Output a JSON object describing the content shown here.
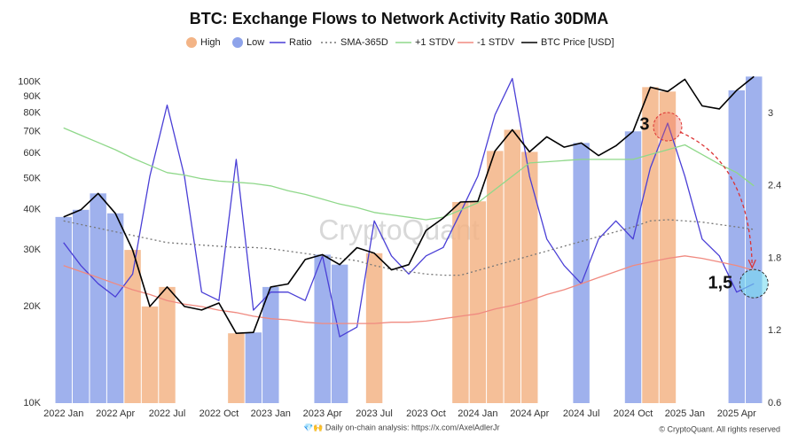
{
  "chart_data": {
    "type": "combo",
    "title": "BTC: Exchange Flows to Network Activity Ratio 30DMA",
    "watermark": "CryptoQuant",
    "footer_left": "💎🙌 Daily on-chain analysis: https://x.com/AxelAdlerJr",
    "footer_right": "© CryptoQuant. All rights reserved",
    "annotations": [
      "3",
      "1,5"
    ],
    "categories": [
      "2022 Jan",
      null,
      null,
      "2022 Apr",
      null,
      null,
      "2022 Jul",
      null,
      null,
      "2022 Oct",
      null,
      null,
      "2023 Jan",
      null,
      null,
      "2023 Apr",
      null,
      null,
      "2023 Jul",
      null,
      null,
      "2023 Oct",
      null,
      null,
      "2024 Jan",
      null,
      null,
      "2024 Apr",
      null,
      null,
      "2024 Jul",
      null,
      null,
      "2024 Oct",
      null,
      null,
      "2025 Jan",
      null,
      null,
      "2025 Apr",
      null
    ],
    "ylim": [
      10000,
      123000
    ],
    "ylog": true,
    "yticks": [
      {
        "value": 10000,
        "label": "10K"
      },
      {
        "value": 20000,
        "label": "20K"
      },
      {
        "value": 30000,
        "label": "30K"
      },
      {
        "value": 40000,
        "label": "40K"
      },
      {
        "value": 50000,
        "label": "50K"
      },
      {
        "value": 60000,
        "label": "60K"
      },
      {
        "value": 70000,
        "label": "70K"
      },
      {
        "value": 80000,
        "label": "80K"
      },
      {
        "value": 90000,
        "label": "90K"
      },
      {
        "value": 100000,
        "label": "100K"
      }
    ],
    "y2lim": [
      0.6,
      3.5
    ],
    "y2ticks": [
      0.6,
      1.2,
      1.8,
      2.4,
      3
    ],
    "grid": false,
    "series": [
      {
        "name": "High",
        "type": "bar",
        "color": "#f3b486",
        "values": [
          null,
          null,
          null,
          null,
          30000,
          20000,
          23000,
          null,
          null,
          null,
          16500,
          null,
          null,
          null,
          null,
          null,
          null,
          null,
          29300,
          null,
          null,
          null,
          null,
          42300,
          42500,
          61000,
          71000,
          60600,
          null,
          null,
          null,
          null,
          null,
          null,
          96400,
          93400,
          null,
          null,
          null,
          null,
          null
        ]
      },
      {
        "name": "Low",
        "type": "bar",
        "color": "#8ea3ea",
        "values": [
          38000,
          40000,
          45000,
          39000,
          null,
          null,
          null,
          null,
          null,
          null,
          null,
          16600,
          23000,
          null,
          null,
          29000,
          27000,
          null,
          null,
          null,
          null,
          null,
          null,
          null,
          null,
          null,
          null,
          null,
          null,
          null,
          64600,
          null,
          null,
          70200,
          null,
          null,
          null,
          null,
          null,
          94200,
          104000
        ]
      },
      {
        "name": "Ratio",
        "type": "line",
        "axis": "y2",
        "color": "#4a3fd6",
        "values": [
          1.93,
          1.74,
          1.59,
          1.48,
          1.67,
          2.48,
          3.07,
          2.48,
          1.52,
          1.45,
          2.62,
          1.37,
          1.52,
          1.52,
          1.45,
          1.82,
          1.15,
          1.23,
          2.11,
          1.82,
          1.67,
          1.82,
          1.89,
          2.18,
          2.48,
          2.99,
          3.29,
          2.48,
          1.96,
          1.74,
          1.59,
          1.96,
          2.11,
          1.96,
          2.55,
          2.92,
          2.48,
          1.96,
          1.82,
          1.52,
          1.59
        ]
      },
      {
        "name": "SMA-365D",
        "type": "line",
        "axis": "y2",
        "color": "#777777",
        "dash": true,
        "values": [
          2.11,
          2.08,
          2.05,
          2.02,
          1.99,
          1.96,
          1.93,
          1.92,
          1.91,
          1.9,
          1.89,
          1.89,
          1.88,
          1.86,
          1.84,
          1.82,
          1.8,
          1.78,
          1.74,
          1.71,
          1.69,
          1.67,
          1.66,
          1.66,
          1.7,
          1.74,
          1.78,
          1.82,
          1.86,
          1.9,
          1.94,
          1.98,
          2.02,
          2.06,
          2.11,
          2.12,
          2.11,
          2.1,
          2.08,
          2.06,
          2.04
        ]
      },
      {
        "name": "+1 STDV",
        "type": "line",
        "axis": "y2",
        "color": "#8fd88a",
        "values": [
          2.88,
          2.82,
          2.76,
          2.7,
          2.63,
          2.57,
          2.51,
          2.49,
          2.46,
          2.44,
          2.43,
          2.42,
          2.4,
          2.36,
          2.33,
          2.29,
          2.25,
          2.22,
          2.18,
          2.16,
          2.14,
          2.12,
          2.14,
          2.2,
          2.26,
          2.37,
          2.48,
          2.59,
          2.6,
          2.61,
          2.62,
          2.62,
          2.62,
          2.62,
          2.66,
          2.7,
          2.74,
          2.66,
          2.58,
          2.51,
          2.4
        ]
      },
      {
        "name": "-1 STDV",
        "type": "line",
        "axis": "y2",
        "color": "#f08a80",
        "values": [
          1.74,
          1.69,
          1.64,
          1.59,
          1.54,
          1.5,
          1.45,
          1.42,
          1.4,
          1.37,
          1.35,
          1.32,
          1.3,
          1.29,
          1.27,
          1.26,
          1.26,
          1.26,
          1.26,
          1.27,
          1.27,
          1.28,
          1.3,
          1.32,
          1.34,
          1.38,
          1.41,
          1.45,
          1.5,
          1.54,
          1.59,
          1.64,
          1.69,
          1.74,
          1.77,
          1.8,
          1.82,
          1.8,
          1.77,
          1.74,
          1.7
        ]
      },
      {
        "name": "BTC Price [USD]",
        "type": "line",
        "axis": "y",
        "color": "#000000",
        "values": [
          38000,
          40000,
          45000,
          39000,
          30000,
          20000,
          23000,
          20000,
          19500,
          20500,
          16500,
          16600,
          23000,
          23500,
          28000,
          29000,
          27000,
          30500,
          29300,
          26000,
          27000,
          34500,
          37700,
          42300,
          42500,
          61000,
          71000,
          60600,
          67500,
          62700,
          64600,
          59000,
          63300,
          70200,
          96400,
          93400,
          102000,
          84300,
          82500,
          94200,
          104000
        ]
      }
    ]
  }
}
